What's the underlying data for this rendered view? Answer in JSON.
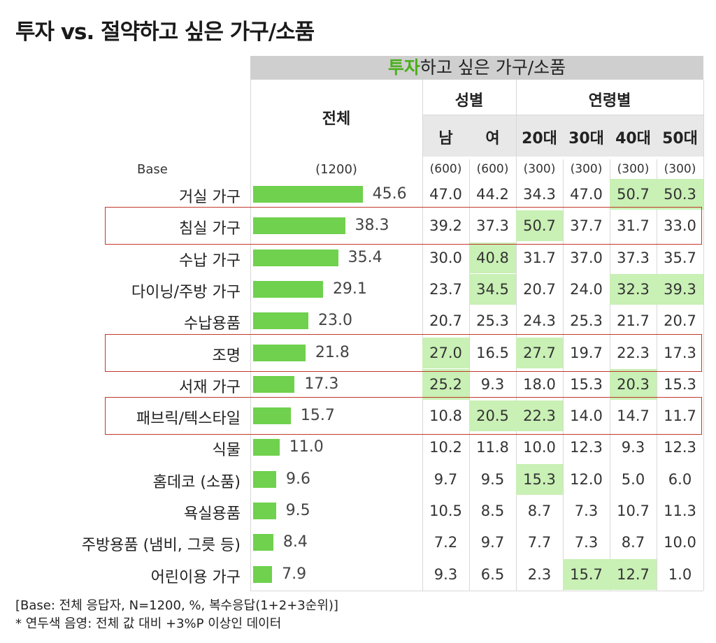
{
  "title": "투자 vs. 절약하고 싶은 가구/소품",
  "banner": {
    "highlight": "투자",
    "rest": "하고 싶은 가구/소품"
  },
  "headers": {
    "total": "전체",
    "gender": "성별",
    "age": "연령별",
    "columns": [
      "남",
      "여",
      "20대",
      "30대",
      "40대",
      "50대"
    ],
    "base_label": "Base",
    "base_total": "(1200)",
    "base_columns": [
      "(600)",
      "(600)",
      "(300)",
      "(300)",
      "(300)",
      "(300)"
    ]
  },
  "colors": {
    "bar": "#6fd14d",
    "highlight_cell": "#c9f0b5",
    "banner_bg": "#cfcfcf",
    "banner_highlight": "#4caf1e",
    "box": "#c0392b"
  },
  "chart_data": {
    "type": "bar",
    "orientation": "horizontal",
    "title": "투자하고 싶은 가구/소품",
    "categories": [
      "거실 가구",
      "침실 가구",
      "수납 가구",
      "다이닝/주방 가구",
      "수납용품",
      "조명",
      "서재 가구",
      "패브릭/텍스타일",
      "식물",
      "홈데코 (소품)",
      "욕실용품",
      "주방용품 (냄비, 그릇 등)",
      "어린이용 가구"
    ],
    "values": [
      45.6,
      38.3,
      35.4,
      29.1,
      23.0,
      21.8,
      17.3,
      15.7,
      11.0,
      9.6,
      9.5,
      8.4,
      7.9
    ],
    "value_labels": [
      "45.6",
      "38.3",
      "35.4",
      "29.1",
      "23.0",
      "21.8",
      "17.3",
      "15.7",
      "11.0",
      "9.6",
      "9.5",
      "8.4",
      "7.9"
    ],
    "xlim": [
      0,
      50
    ],
    "table": {
      "columns": [
        "남",
        "여",
        "20대",
        "30대",
        "40대",
        "50대"
      ],
      "rows": [
        [
          "47.0",
          "44.2",
          "34.3",
          "47.0",
          "50.7",
          "50.3"
        ],
        [
          "39.2",
          "37.3",
          "50.7",
          "37.7",
          "31.7",
          "33.0"
        ],
        [
          "30.0",
          "40.8",
          "31.7",
          "37.0",
          "37.3",
          "35.7"
        ],
        [
          "23.7",
          "34.5",
          "20.7",
          "24.0",
          "32.3",
          "39.3"
        ],
        [
          "20.7",
          "25.3",
          "24.3",
          "25.3",
          "21.7",
          "20.7"
        ],
        [
          "27.0",
          "16.5",
          "27.7",
          "19.7",
          "22.3",
          "17.3"
        ],
        [
          "25.2",
          "9.3",
          "18.0",
          "15.3",
          "20.3",
          "15.3"
        ],
        [
          "10.8",
          "20.5",
          "22.3",
          "14.0",
          "14.7",
          "11.7"
        ],
        [
          "10.2",
          "11.8",
          "10.0",
          "12.3",
          "9.3",
          "12.3"
        ],
        [
          "9.7",
          "9.5",
          "15.3",
          "12.0",
          "5.0",
          "6.0"
        ],
        [
          "10.5",
          "8.5",
          "8.7",
          "7.3",
          "10.7",
          "11.3"
        ],
        [
          "7.2",
          "9.7",
          "7.7",
          "7.3",
          "8.7",
          "10.0"
        ],
        [
          "9.3",
          "6.5",
          "2.3",
          "15.7",
          "12.7",
          "1.0"
        ]
      ],
      "highlighted": [
        [
          0,
          4
        ],
        [
          0,
          5
        ],
        [
          1,
          2
        ],
        [
          2,
          1
        ],
        [
          3,
          1
        ],
        [
          3,
          4
        ],
        [
          3,
          5
        ],
        [
          5,
          0
        ],
        [
          5,
          2
        ],
        [
          6,
          0
        ],
        [
          6,
          4
        ],
        [
          7,
          1
        ],
        [
          7,
          2
        ],
        [
          9,
          2
        ],
        [
          12,
          3
        ],
        [
          12,
          4
        ]
      ]
    },
    "boxed_rows": [
      1,
      5,
      7
    ]
  },
  "footnotes": [
    "[Base: 전체 응답자, N=1200, %, 복수응답(1+2+3순위)]",
    "* 연두색 음영: 전체 값  대비 +3%P 이상인 데이터"
  ]
}
